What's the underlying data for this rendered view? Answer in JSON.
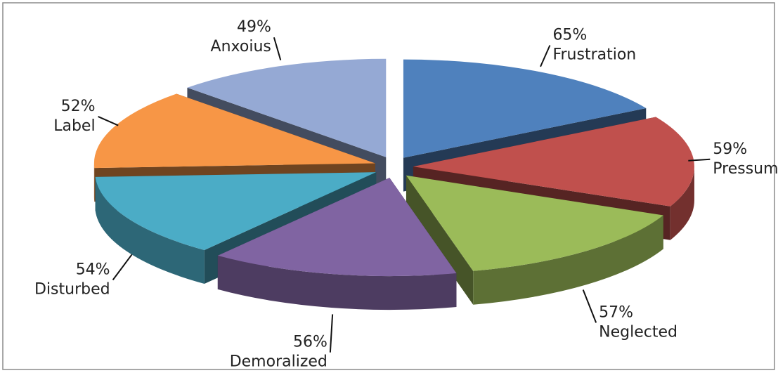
{
  "chart_data": {
    "type": "pie3d",
    "categories": [
      "Frustration",
      "Pressumarized",
      "Neglected",
      "Demoralized",
      "Disturbed",
      "Label",
      "Anxoius"
    ],
    "values": [
      65,
      59,
      57,
      56,
      54,
      52,
      49
    ],
    "value_labels": [
      "65%",
      "59%",
      "57%",
      "56%",
      "54%",
      "52%",
      "49%"
    ],
    "colors": [
      "#4f81bd",
      "#c0504d",
      "#9bbb59",
      "#8064a2",
      "#4bacc6",
      "#f79646",
      "#95a9d4"
    ],
    "exploded": true
  }
}
